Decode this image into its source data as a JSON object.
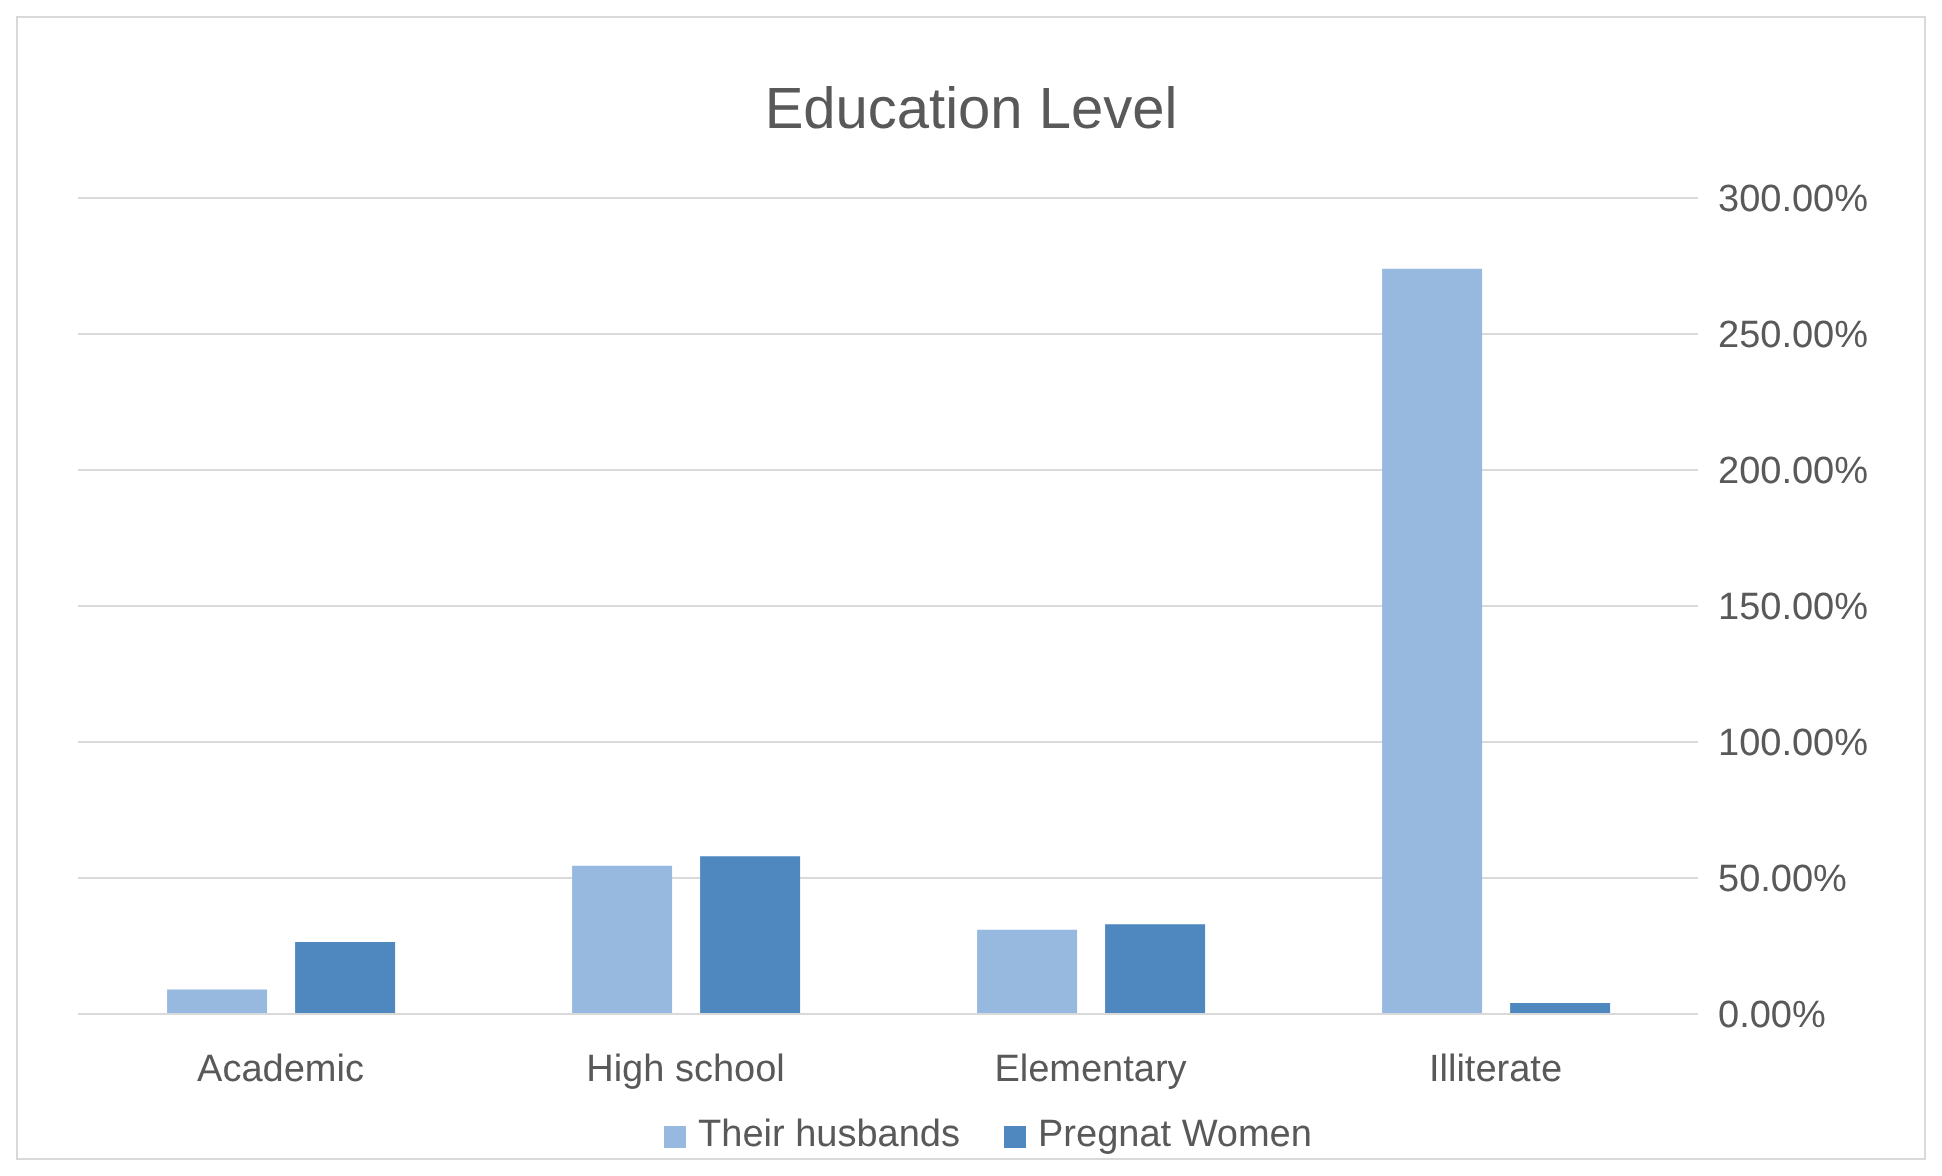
{
  "chart_data": {
    "type": "bar",
    "title": "Education Level",
    "categories": [
      "Academic",
      "High school",
      "Elementary",
      "Illiterate"
    ],
    "series": [
      {
        "name": "Their husbands",
        "color": "#98b9df",
        "values": [
          9,
          54.5,
          31,
          274
        ]
      },
      {
        "name": "Pregnat Women",
        "color": "#4e88bf",
        "values": [
          26.5,
          58,
          33,
          4
        ]
      }
    ],
    "ylim": [
      0,
      300
    ],
    "yticks": [
      {
        "value": 0,
        "label": "0.00%"
      },
      {
        "value": 50,
        "label": "50.00%"
      },
      {
        "value": 100,
        "label": "100.00%"
      },
      {
        "value": 150,
        "label": "150.00%"
      },
      {
        "value": 200,
        "label": "200.00%"
      },
      {
        "value": 250,
        "label": "250.00%"
      },
      {
        "value": 300,
        "label": "300.00%"
      }
    ],
    "grid": "y",
    "legend": "bottom"
  }
}
